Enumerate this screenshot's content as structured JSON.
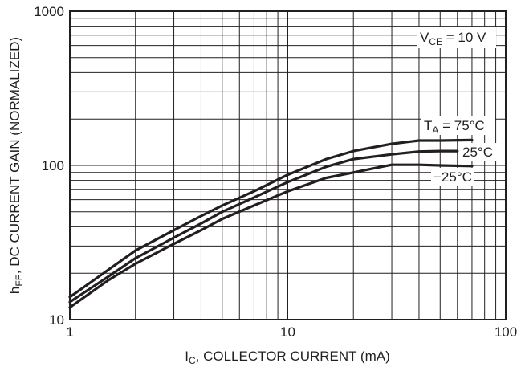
{
  "chart_data": {
    "type": "line",
    "x_scale": "log",
    "y_scale": "log",
    "xlim": [
      1,
      100
    ],
    "ylim": [
      10,
      1000
    ],
    "grid": true,
    "xlabel": "I_C, COLLECTOR CURRENT (mA)",
    "xlabel_parts": {
      "main": "I",
      "sub": "C",
      "rest": ", COLLECTOR CURRENT (mA)"
    },
    "ylabel": "h_FE, DC CURRENT GAIN (NORMALIZED)",
    "ylabel_parts": {
      "main": "h",
      "sub": "FE",
      "rest": ", DC CURRENT GAIN (NORMALIZED)"
    },
    "x_ticks": [
      "1",
      "10",
      "100"
    ],
    "y_ticks": [
      "10",
      "100",
      "1000"
    ],
    "condition": {
      "main": "V",
      "sub": "CE",
      "rest": " = 10 V"
    },
    "series": [
      {
        "name": "T_A = 75°C",
        "label_parts": {
          "main": "T",
          "sub": "A",
          "rest": " = 75°C"
        },
        "x": [
          1,
          1.5,
          2,
          3,
          4,
          5,
          7,
          10,
          15,
          20,
          30,
          40,
          50,
          70
        ],
        "y": [
          14,
          21,
          28,
          38,
          47,
          55,
          68,
          87,
          110,
          124,
          138,
          145,
          145,
          146
        ]
      },
      {
        "name": "25°C",
        "label_parts": {
          "main": "",
          "sub": "",
          "rest": "25°C"
        },
        "x": [
          1,
          1.5,
          2,
          3,
          4,
          5,
          7,
          10,
          15,
          20,
          30,
          40,
          50,
          60
        ],
        "y": [
          13,
          19,
          25,
          34,
          42,
          50,
          62,
          78,
          98,
          110,
          118,
          123,
          124,
          124
        ]
      },
      {
        "name": "−25°C",
        "label_parts": {
          "main": "",
          "sub": "",
          "rest": "−25°C"
        },
        "x": [
          1,
          1.5,
          2,
          3,
          4,
          5,
          7,
          10,
          15,
          20,
          25,
          30,
          40,
          50,
          70
        ],
        "y": [
          12,
          18,
          23,
          31,
          38,
          45,
          55,
          68,
          83,
          90,
          96,
          101,
          101,
          100,
          99
        ]
      }
    ]
  }
}
